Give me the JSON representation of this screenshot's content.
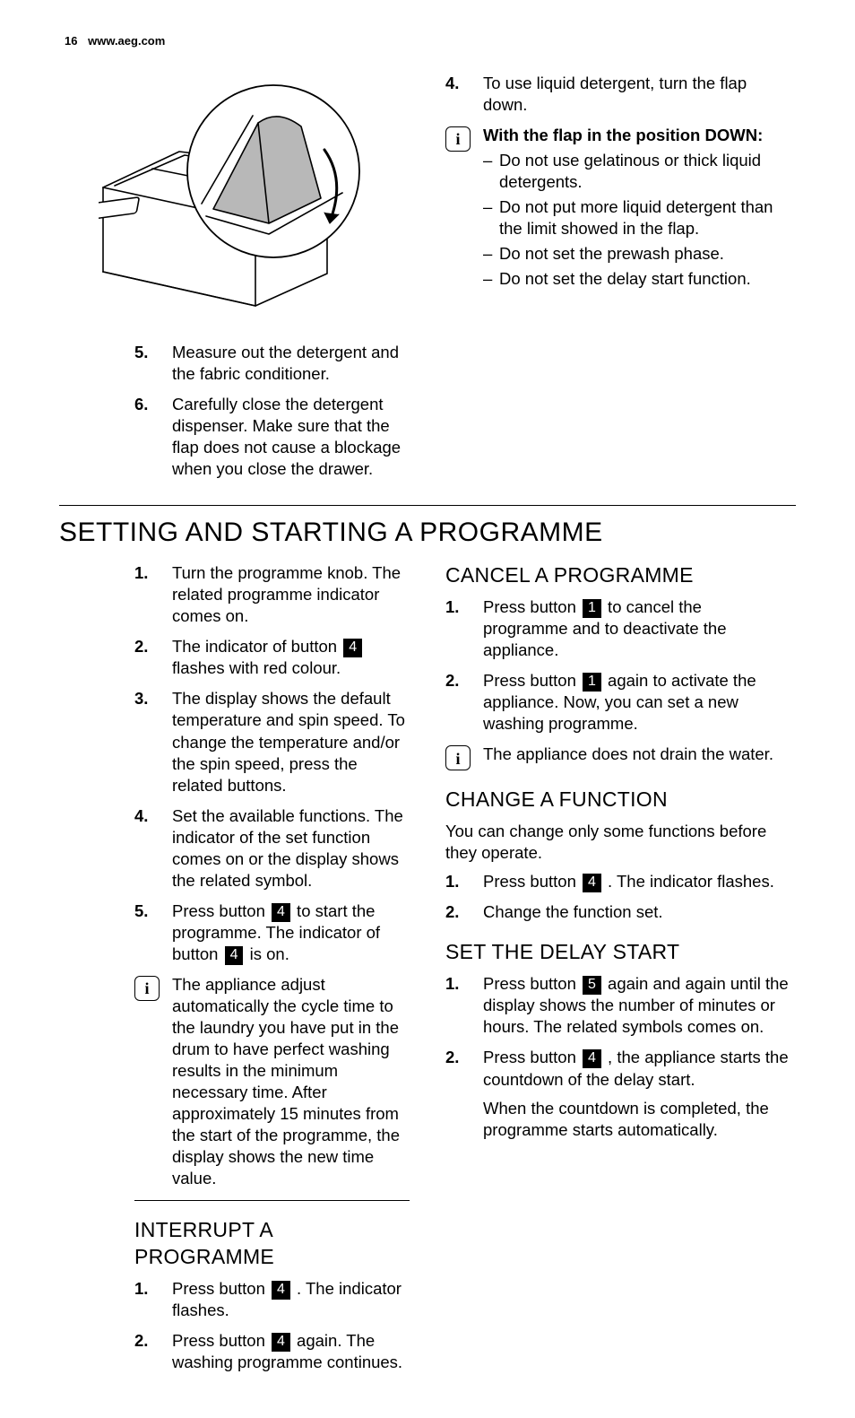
{
  "page_number": "16",
  "site": "www.aeg.com",
  "upper_left_list": [
    {
      "n": "5.",
      "text": "Measure out the detergent and the fabric conditioner."
    },
    {
      "n": "6.",
      "text": "Carefully close the detergent dispenser. Make sure that the flap does not cause a blockage when you close the drawer."
    }
  ],
  "upper_right_list": [
    {
      "n": "4.",
      "text": "To use liquid detergent, turn the flap down."
    }
  ],
  "upper_right_info_title": "With the flap in the position DOWN:",
  "upper_right_info_items": [
    "Do not use gelatinous or thick liquid detergents.",
    "Do not put more liquid detergent than the limit showed in the flap.",
    "Do not set the prewash phase.",
    "Do not set the delay start function."
  ],
  "section_title": "SETTING AND STARTING A PROGRAMME",
  "left_main_list": [
    {
      "n": "1.",
      "parts": [
        {
          "t": "Turn the programme knob. The related programme indicator comes on."
        }
      ]
    },
    {
      "n": "2.",
      "parts": [
        {
          "t": "The indicator of button "
        },
        {
          "badge": "4"
        },
        {
          "t": " flashes with red colour."
        }
      ]
    },
    {
      "n": "3.",
      "parts": [
        {
          "t": "The display shows the default temperature and spin speed. To change the temperature and/or the spin speed, press the related buttons."
        }
      ]
    },
    {
      "n": "4.",
      "parts": [
        {
          "t": "Set the available functions. The indicator of the set function comes on or the display shows the related symbol."
        }
      ]
    },
    {
      "n": "5.",
      "parts": [
        {
          "t": "Press button "
        },
        {
          "badge": "4"
        },
        {
          "t": " to start the programme. The indicator of button "
        },
        {
          "badge": "4"
        },
        {
          "t": " is on."
        }
      ]
    }
  ],
  "left_info_text": "The appliance adjust automatically the cycle time to the laundry you have put in the drum to have perfect washing results in the minimum necessary time. After approximately 15 minutes from the start of the programme, the display shows the new time value.",
  "interrupt_title": "INTERRUPT A PROGRAMME",
  "interrupt_list": [
    {
      "n": "1.",
      "parts": [
        {
          "t": "Press button "
        },
        {
          "badge": "4"
        },
        {
          "t": " . The indicator flashes."
        }
      ]
    },
    {
      "n": "2.",
      "parts": [
        {
          "t": "Press button "
        },
        {
          "badge": "4"
        },
        {
          "t": " again. The washing programme continues."
        }
      ]
    }
  ],
  "cancel_title": "CANCEL A PROGRAMME",
  "cancel_list": [
    {
      "n": "1.",
      "parts": [
        {
          "t": "Press button "
        },
        {
          "badge": "1"
        },
        {
          "t": " to cancel the programme and to deactivate the appliance."
        }
      ]
    },
    {
      "n": "2.",
      "parts": [
        {
          "t": "Press button "
        },
        {
          "badge": "1"
        },
        {
          "t": " again to activate the appliance. Now, you can set a new washing programme."
        }
      ]
    }
  ],
  "cancel_info_text": "The appliance does not drain the water.",
  "change_title": "CHANGE A FUNCTION",
  "change_intro": "You can change only some functions before they operate.",
  "change_list": [
    {
      "n": "1.",
      "parts": [
        {
          "t": "Press button "
        },
        {
          "badge": "4"
        },
        {
          "t": " . The indicator flashes."
        }
      ]
    },
    {
      "n": "2.",
      "parts": [
        {
          "t": "Change the function set."
        }
      ]
    }
  ],
  "delay_title": "SET THE DELAY START",
  "delay_list": [
    {
      "n": "1.",
      "parts": [
        {
          "t": "Press button "
        },
        {
          "badge": "5"
        },
        {
          "t": " again and again until the display shows the number of minutes or hours. The related symbols comes on."
        }
      ]
    },
    {
      "n": "2.",
      "parts": [
        {
          "t": "Press button "
        },
        {
          "badge": "4"
        },
        {
          "t": " , the appliance starts the countdown of the delay start."
        }
      ],
      "extra": "When the countdown is completed, the programme starts automatically."
    }
  ],
  "illustration": {
    "drawer_stroke": "#000000",
    "flap_fill": "#b8b8b8",
    "bg": "#ffffff"
  }
}
